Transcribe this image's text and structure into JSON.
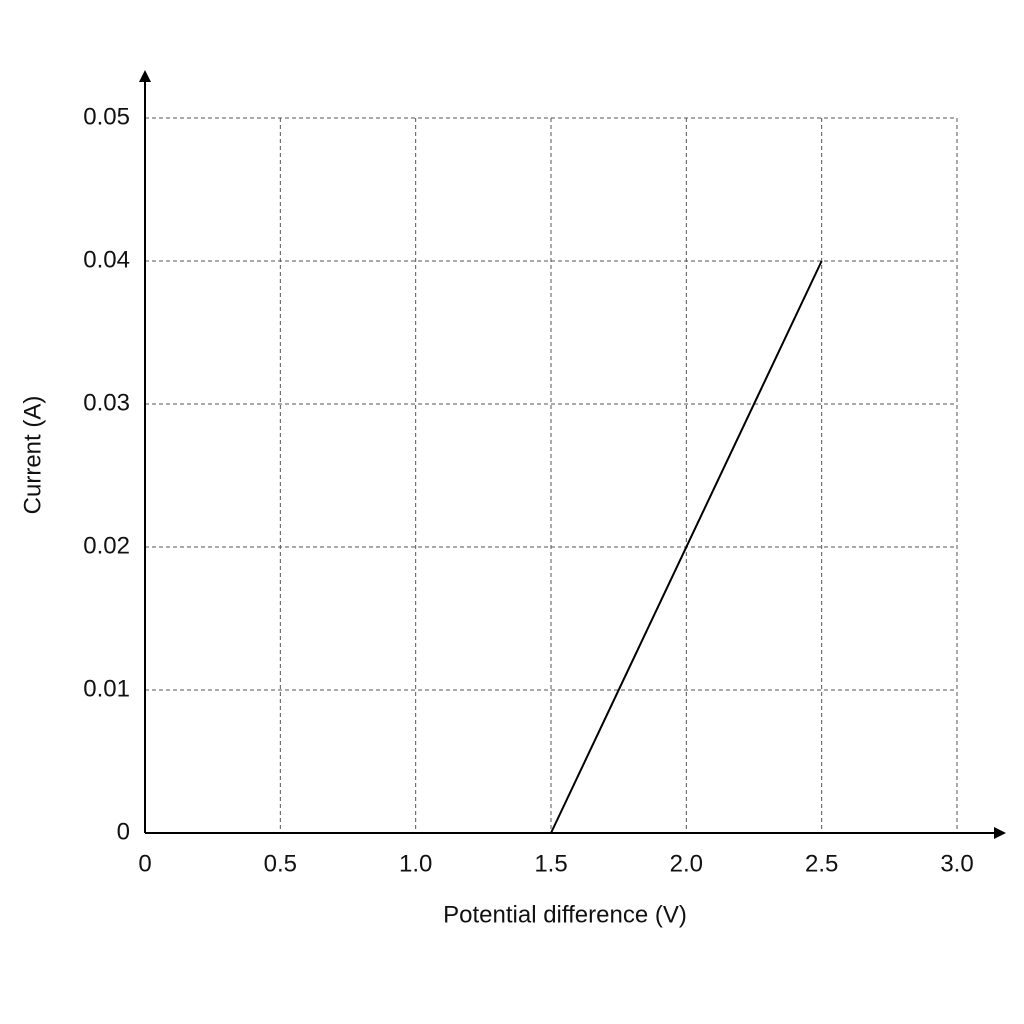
{
  "chart_data": {
    "type": "line",
    "x_label": "Potential difference (V)",
    "y_label": "Current (A)",
    "x": [
      1.5,
      2.5
    ],
    "values": [
      0,
      0.04
    ],
    "color": "#000000",
    "xlim": [
      0,
      3
    ],
    "ylim": [
      0,
      0.05
    ],
    "xticks": [
      0,
      0.5,
      {
        "value": 1,
        "label": "1.0"
      },
      1.5,
      {
        "value": 2,
        "label": "2.0"
      },
      2.5,
      {
        "value": 3,
        "label": "3.0"
      }
    ],
    "yticks": [
      0,
      0.01,
      0.02,
      0.03,
      0.04,
      0.05
    ],
    "grid": true
  }
}
